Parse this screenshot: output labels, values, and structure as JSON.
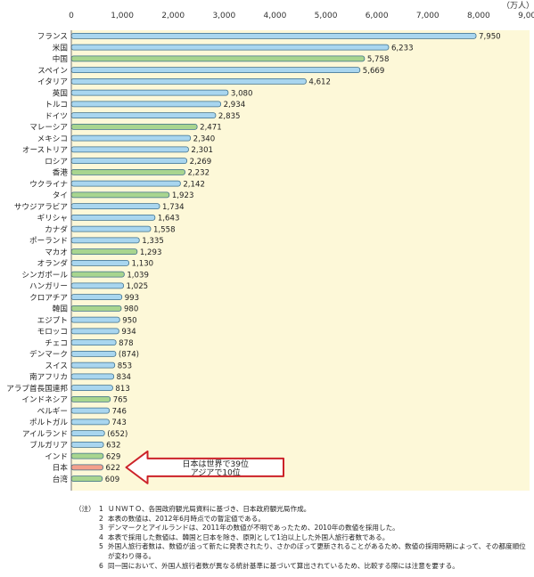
{
  "chart_data": {
    "type": "bar",
    "orientation": "horizontal",
    "unit": "（万人）",
    "xlim": [
      0,
      9000
    ],
    "xticks": [
      "0",
      "1,000",
      "2,000",
      "3,000",
      "4,000",
      "5,000",
      "6,000",
      "7,000",
      "8,000",
      "9,000"
    ],
    "grid": false,
    "categories": [
      "フランス",
      "米国",
      "中国",
      "スペイン",
      "イタリア",
      "英国",
      "トルコ",
      "ドイツ",
      "マレーシア",
      "メキシコ",
      "オーストリア",
      "ロシア",
      "香港",
      "ウクライナ",
      "タイ",
      "サウジアラビア",
      "ギリシャ",
      "カナダ",
      "ポーランド",
      "マカオ",
      "オランダ",
      "シンガポール",
      "ハンガリー",
      "クロアチア",
      "韓国",
      "エジプト",
      "モロッコ",
      "チェコ",
      "デンマーク",
      "スイス",
      "南アフリカ",
      "アラブ首長国連邦",
      "インドネシア",
      "ベルギー",
      "ポルトガル",
      "アイルランド",
      "ブルガリア",
      "インド",
      "日本",
      "台湾"
    ],
    "values": [
      7950,
      6233,
      5758,
      5669,
      4612,
      3080,
      2934,
      2835,
      2471,
      2340,
      2301,
      2269,
      2232,
      2142,
      1923,
      1734,
      1643,
      1558,
      1335,
      1293,
      1130,
      1039,
      1025,
      993,
      980,
      950,
      934,
      878,
      874,
      853,
      834,
      813,
      765,
      746,
      743,
      652,
      632,
      629,
      622,
      609
    ],
    "value_labels": [
      "7,950",
      "6,233",
      "5,758",
      "5,669",
      "4,612",
      "3,080",
      "2,934",
      "2,835",
      "2,471",
      "2,340",
      "2,301",
      "2,269",
      "2,232",
      "2,142",
      "1,923",
      "1,734",
      "1,643",
      "1,558",
      "1,335",
      "1,293",
      "1,130",
      "1,039",
      "1,025",
      "993",
      "980",
      "950",
      "934",
      "878",
      "(874)",
      "853",
      "834",
      "813",
      "765",
      "746",
      "743",
      "(652)",
      "632",
      "629",
      "622",
      "609"
    ],
    "groups": [
      "other",
      "other",
      "asia",
      "other",
      "other",
      "other",
      "other",
      "other",
      "asia",
      "other",
      "other",
      "other",
      "asia",
      "other",
      "asia",
      "other",
      "other",
      "other",
      "other",
      "asia",
      "other",
      "asia",
      "other",
      "other",
      "asia",
      "other",
      "other",
      "other",
      "other",
      "other",
      "other",
      "other",
      "asia",
      "other",
      "other",
      "other",
      "other",
      "asia",
      "japan",
      "asia"
    ],
    "colors": {
      "other": "#a9d6ef",
      "asia": "#a8d58f",
      "japan": "#f3a08c",
      "bar_stroke": "#3d6f8c",
      "plot_bg": "#fdf8d8",
      "arrow": "#cc2229"
    },
    "annotation": {
      "line1": "日本は世界で39位",
      "line2": "アジアで10位",
      "target": "日本"
    }
  },
  "notes": {
    "head": "（注）",
    "items": [
      {
        "num": "1",
        "text": "ＵＮＷＴＯ、各国政府観光局資料に基づき、日本政府観光局作成。"
      },
      {
        "num": "2",
        "text": "本表の数値は、2012年6月時点での暫定値である。"
      },
      {
        "num": "3",
        "text": "デンマークとアイルランドは、2011年の数値が不明であったため、2010年の数値を採用した。"
      },
      {
        "num": "4",
        "text": "本表で採用した数値は、韓国と日本を除き、原則として1泊以上した外国人旅行者数である。"
      },
      {
        "num": "5",
        "text": "外国人旅行者数は、数値が追って新たに発表されたり、さかのぼって更新されることがあるため、数値の採用時期によって、その都度順位が変わり得る。"
      },
      {
        "num": "6",
        "text": "同一国において、外国人旅行者数が異なる統計基準に基づいて算出されているため、比較する際には注意を要する。"
      }
    ]
  }
}
